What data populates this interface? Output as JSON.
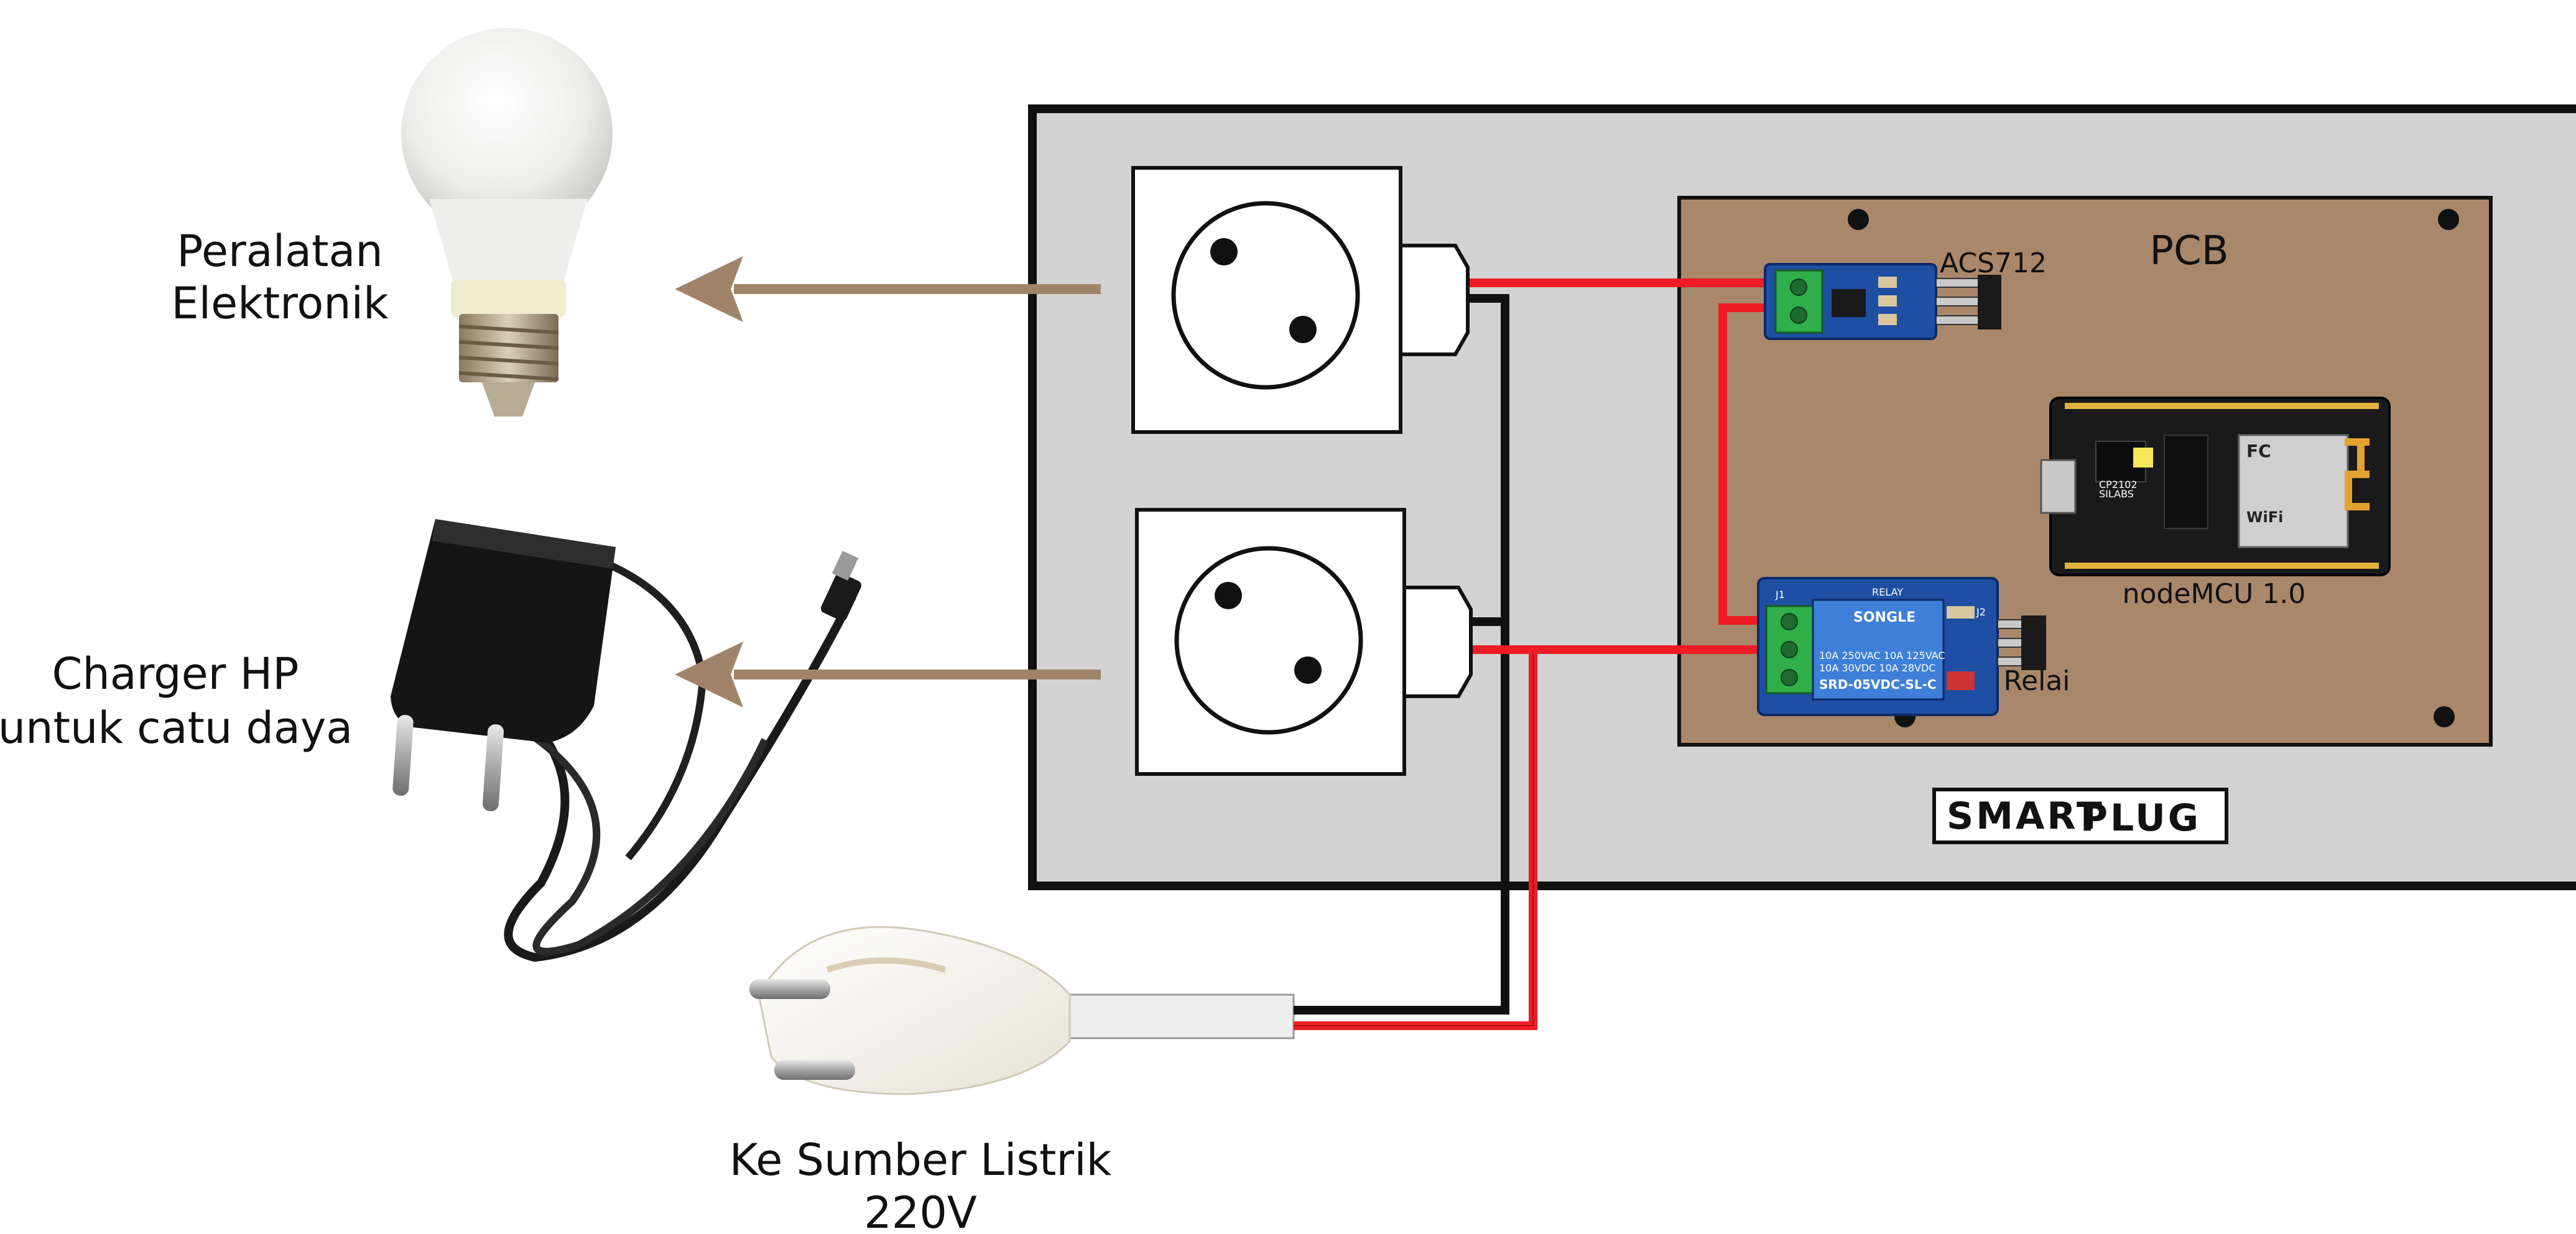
{
  "labels": {
    "appliance": [
      "Peralatan",
      "Elektronik"
    ],
    "charger": [
      "Charger HP",
      "untuk catu daya"
    ],
    "source": [
      "Ke Sumber Listrik",
      "220V"
    ],
    "pcb": "PCB",
    "current_sensor": "ACS712",
    "microcontroller": "nodeMCU 1.0",
    "relay": "Relai",
    "brand_small": "SMART",
    "brand_big": "PLUG"
  },
  "module_marks": {
    "relay_header": "RELAY",
    "relay_connector": "J1",
    "relay_pin_label": "J2",
    "relay_brand": "SONGLE",
    "relay_spec_1": "10A 250VAC   10A 125VAC",
    "relay_spec_2": "10A 30VDC    10A 28VDC",
    "relay_model": "SRD-05VDC-SL-C",
    "mcu_chip": "CP2102",
    "mcu_vendor": "SILABS",
    "mcu_wifi": "WiFi",
    "mcu_fcc": "FC"
  },
  "colors": {
    "housing": "#d3d3d3",
    "pcb": "#a9876a",
    "arrow": "#a0846a",
    "wire_live": "#ee1c24",
    "wire_neutral": "#111111",
    "module_blue": "#1e4fa3",
    "terminal_green": "#2fae4a"
  }
}
